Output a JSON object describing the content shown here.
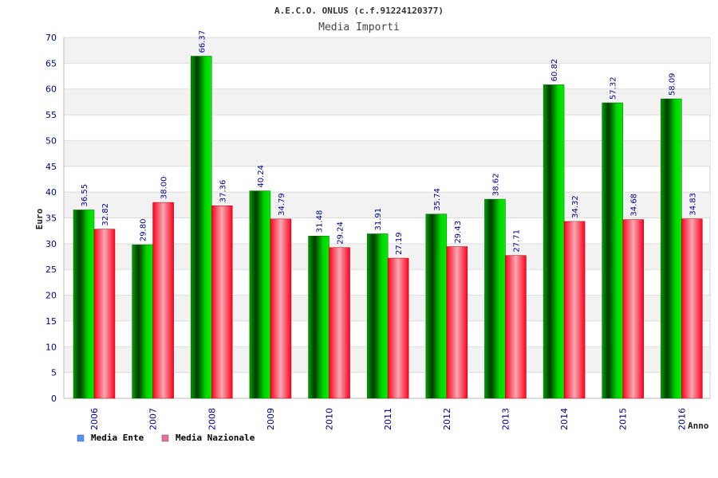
{
  "chart_data": {
    "type": "bar",
    "title": "A.E.C.O. ONLUS (c.f.91224120377)",
    "subtitle": "Media Importi",
    "ylabel": "Euro",
    "xlabel": "Anno",
    "ylim": [
      0,
      70
    ],
    "ytick_step": 5,
    "grid": true,
    "legend_position": "bottom-left",
    "categories": [
      "2006",
      "2007",
      "2008",
      "2009",
      "2010",
      "2011",
      "2012",
      "2013",
      "2014",
      "2015",
      "2016"
    ],
    "series": [
      {
        "name": "Media Ente",
        "values": [
          36.55,
          29.8,
          66.37,
          40.24,
          31.48,
          31.91,
          35.74,
          38.62,
          60.82,
          57.32,
          58.09
        ],
        "labels": [
          "36.55",
          "29.80",
          "66.37",
          "40.24",
          "31.48",
          "31.91",
          "35.74",
          "38.62",
          "60.82",
          "57.32",
          "58.09"
        ],
        "color": "#00b800",
        "legend_color": "#4f94ff"
      },
      {
        "name": "Media Nazionale",
        "values": [
          32.82,
          38.0,
          37.36,
          34.79,
          29.24,
          27.19,
          29.43,
          27.71,
          34.32,
          34.68,
          34.83
        ],
        "labels": [
          "32.82",
          "38.00",
          "37.36",
          "34.79",
          "29.24",
          "27.19",
          "29.43",
          "27.71",
          "34.32",
          "34.68",
          "34.83"
        ],
        "color": "#ff0a28",
        "legend_color": "#e86fa0"
      }
    ]
  }
}
